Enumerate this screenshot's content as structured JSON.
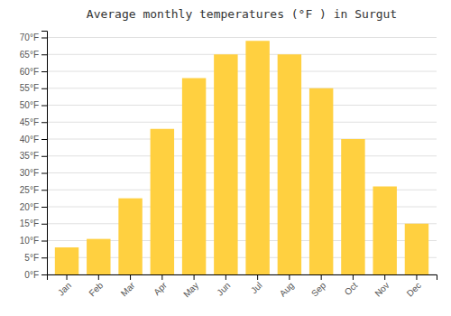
{
  "chart_data": {
    "type": "bar",
    "title": "Average monthly temperatures (°F ) in Surgut",
    "categories": [
      "Jan",
      "Feb",
      "Mar",
      "Apr",
      "May",
      "Jun",
      "Jul",
      "Aug",
      "Sep",
      "Oct",
      "Nov",
      "Dec"
    ],
    "values": [
      8,
      10.5,
      22.5,
      43,
      58,
      65,
      69,
      65,
      55,
      40,
      26,
      15
    ],
    "color": "#FFD040",
    "ylim": [
      0,
      72
    ],
    "yticks": [
      {
        "value": 0,
        "label": "0°F"
      },
      {
        "value": 5,
        "label": "5°F"
      },
      {
        "value": 10,
        "label": "10°F"
      },
      {
        "value": 15,
        "label": "15°F"
      },
      {
        "value": 20,
        "label": "20°F"
      },
      {
        "value": 25,
        "label": "25°F"
      },
      {
        "value": 30,
        "label": "30°F"
      },
      {
        "value": 35,
        "label": "35°F"
      },
      {
        "value": 40,
        "label": "40°F"
      },
      {
        "value": 45,
        "label": "45°F"
      },
      {
        "value": 50,
        "label": "50°F"
      },
      {
        "value": 55,
        "label": "55°F"
      },
      {
        "value": 60,
        "label": "60°F"
      },
      {
        "value": 65,
        "label": "65°F"
      },
      {
        "value": 70,
        "label": "70°F"
      }
    ],
    "grid": true
  }
}
